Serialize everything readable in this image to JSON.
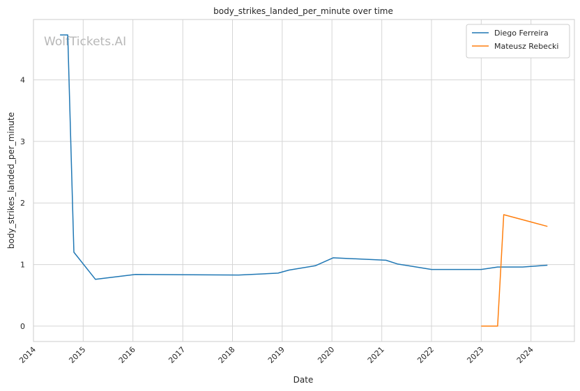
{
  "watermark": "WolfTickets.AI",
  "chart_data": {
    "type": "line",
    "title": "body_strikes_landed_per_minute over time",
    "xlabel": "Date",
    "ylabel": "body_strikes_landed_per_minute",
    "x_ticks": [
      "2014",
      "2015",
      "2016",
      "2017",
      "2018",
      "2019",
      "2020",
      "2021",
      "2022",
      "2023",
      "2024"
    ],
    "y_ticks": [
      "0",
      "1",
      "2",
      "3",
      "4"
    ],
    "xlim": [
      "2014-01-01",
      "2024-11-15"
    ],
    "ylim": [
      -0.25,
      4.98
    ],
    "grid": true,
    "legend_position": "top-right",
    "series": [
      {
        "name": "Diego Ferreira",
        "color": "#1f77b4",
        "points": [
          [
            "2014-07-15",
            4.73
          ],
          [
            "2014-09-10",
            4.73
          ],
          [
            "2014-10-25",
            1.2
          ],
          [
            "2015-04-01",
            0.76
          ],
          [
            "2016-01-20",
            0.84
          ],
          [
            "2018-02-15",
            0.83
          ],
          [
            "2018-12-01",
            0.86
          ],
          [
            "2019-02-20",
            0.91
          ],
          [
            "2019-09-01",
            0.98
          ],
          [
            "2020-01-10",
            1.11
          ],
          [
            "2021-02-01",
            1.07
          ],
          [
            "2021-04-25",
            1.01
          ],
          [
            "2022-01-01",
            0.92
          ],
          [
            "2023-01-01",
            0.92
          ],
          [
            "2023-05-01",
            0.96
          ],
          [
            "2023-11-01",
            0.96
          ],
          [
            "2024-05-01",
            0.99
          ]
        ]
      },
      {
        "name": "Mateusz Rebecki",
        "color": "#ff7f0e",
        "points": [
          [
            "2023-01-01",
            0.0
          ],
          [
            "2023-05-01",
            0.0
          ],
          [
            "2023-06-15",
            1.81
          ],
          [
            "2024-05-01",
            1.62
          ]
        ]
      }
    ]
  }
}
